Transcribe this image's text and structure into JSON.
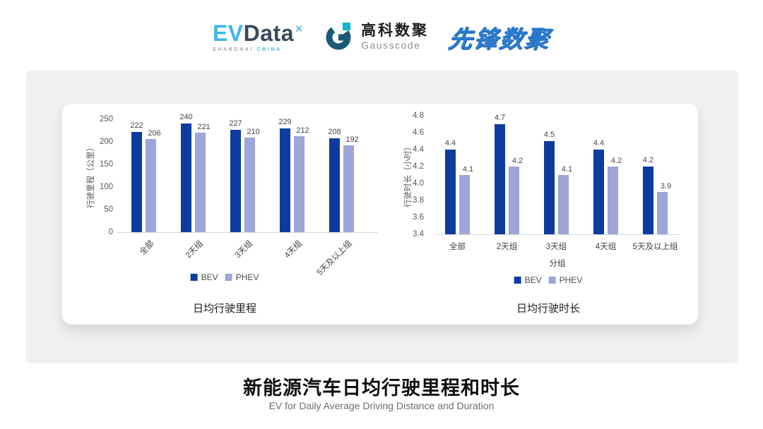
{
  "header": {
    "evdata": {
      "main_left": "EV",
      "main_right": "Data",
      "mark": "✕",
      "tagline_left": "SHANGHAI",
      "tagline_right": "CHINA"
    },
    "gausscode": {
      "cn": "高科数聚",
      "en": "Gausscode"
    },
    "pioneer": {
      "text": "先锋数聚"
    }
  },
  "chart_data": [
    {
      "type": "bar",
      "title": "日均行驶里程",
      "ylabel": "行驶里程（公里）",
      "xlabel": "",
      "categories": [
        "全部",
        "2天组",
        "3天组",
        "4天组",
        "5天及以上组"
      ],
      "series": [
        {
          "name": "BEV",
          "values": [
            222,
            240,
            227,
            229,
            208
          ]
        },
        {
          "name": "PHEV",
          "values": [
            206,
            221,
            210,
            212,
            192
          ]
        }
      ],
      "ylim": [
        0,
        250
      ],
      "yticks": [
        "250",
        "200",
        "150",
        "100",
        "50",
        "0"
      ],
      "label_decimals": 0,
      "x_tick_rotation": 45,
      "grid": false,
      "legend_position": "bottom"
    },
    {
      "type": "bar",
      "title": "日均行驶时长",
      "ylabel": "行驶时长（小时）",
      "xlabel": "分组",
      "categories": [
        "全部",
        "2天组",
        "3天组",
        "4天组",
        "5天及以上组"
      ],
      "series": [
        {
          "name": "BEV",
          "values": [
            4.4,
            4.7,
            4.5,
            4.4,
            4.2
          ]
        },
        {
          "name": "PHEV",
          "values": [
            4.1,
            4.2,
            4.1,
            4.2,
            3.9
          ]
        }
      ],
      "ylim": [
        3.4,
        4.8
      ],
      "yticks": [
        "4.8",
        "4.6",
        "4.4",
        "4.2",
        "4.0",
        "3.8",
        "3.6",
        "3.4"
      ],
      "label_decimals": 1,
      "x_tick_rotation": 0,
      "grid": false,
      "legend_position": "bottom"
    }
  ],
  "footer": {
    "title": "新能源汽车日均行驶里程和时长",
    "subtitle": "EV for Daily Average Driving Distance and Duration"
  },
  "colors": {
    "bev": "#0D3C9E",
    "phev": "#9CA6D8",
    "axis_line": "#D6D6D6",
    "panel_bg": "#F0F0F1",
    "card_bg": "#FFFFFF",
    "tick_text": "#595959",
    "accent_logo_blue": "#3FB6E8",
    "pioneer_blue": "#2B7CD0"
  }
}
